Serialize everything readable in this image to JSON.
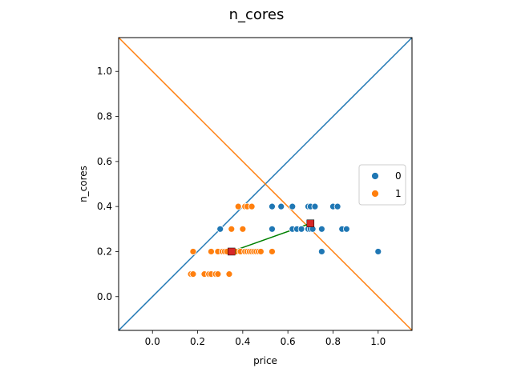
{
  "chart_data": {
    "type": "scatter",
    "title": "n_cores",
    "xlabel": "price",
    "ylabel": "n_cores",
    "xlim": [
      -0.15,
      1.15
    ],
    "ylim": [
      -0.15,
      1.15
    ],
    "xticks": [
      "0.0",
      "0.2",
      "0.4",
      "0.6",
      "0.8",
      "1.0"
    ],
    "yticks": [
      "0.0",
      "0.2",
      "0.4",
      "0.6",
      "0.8",
      "1.0"
    ],
    "grid": false,
    "legend_position": "center-right",
    "series": [
      {
        "name": "0",
        "color": "#1f77b4",
        "points": [
          [
            0.53,
            0.4
          ],
          [
            0.57,
            0.4
          ],
          [
            0.62,
            0.4
          ],
          [
            0.69,
            0.4
          ],
          [
            0.7,
            0.4
          ],
          [
            0.72,
            0.4
          ],
          [
            0.8,
            0.4
          ],
          [
            0.82,
            0.4
          ],
          [
            0.3,
            0.3
          ],
          [
            0.53,
            0.3
          ],
          [
            0.62,
            0.3
          ],
          [
            0.64,
            0.3
          ],
          [
            0.66,
            0.3
          ],
          [
            0.69,
            0.3
          ],
          [
            0.7,
            0.3
          ],
          [
            0.71,
            0.3
          ],
          [
            0.75,
            0.3
          ],
          [
            0.84,
            0.3
          ],
          [
            0.86,
            0.3
          ],
          [
            0.42,
            0.2
          ],
          [
            0.45,
            0.2
          ],
          [
            0.48,
            0.2
          ],
          [
            0.75,
            0.2
          ],
          [
            1.0,
            0.2
          ]
        ]
      },
      {
        "name": "1",
        "color": "#ff7f0e",
        "points": [
          [
            0.38,
            0.4
          ],
          [
            0.41,
            0.4
          ],
          [
            0.42,
            0.4
          ],
          [
            0.44,
            0.4
          ],
          [
            0.35,
            0.3
          ],
          [
            0.4,
            0.3
          ],
          [
            0.18,
            0.2
          ],
          [
            0.26,
            0.2
          ],
          [
            0.29,
            0.2
          ],
          [
            0.31,
            0.2
          ],
          [
            0.32,
            0.2
          ],
          [
            0.33,
            0.2
          ],
          [
            0.35,
            0.2
          ],
          [
            0.37,
            0.2
          ],
          [
            0.39,
            0.2
          ],
          [
            0.41,
            0.2
          ],
          [
            0.42,
            0.2
          ],
          [
            0.43,
            0.2
          ],
          [
            0.44,
            0.2
          ],
          [
            0.45,
            0.2
          ],
          [
            0.46,
            0.2
          ],
          [
            0.47,
            0.2
          ],
          [
            0.48,
            0.2
          ],
          [
            0.53,
            0.2
          ],
          [
            0.17,
            0.1
          ],
          [
            0.18,
            0.1
          ],
          [
            0.23,
            0.1
          ],
          [
            0.25,
            0.1
          ],
          [
            0.26,
            0.1
          ],
          [
            0.28,
            0.1
          ],
          [
            0.29,
            0.1
          ],
          [
            0.34,
            0.1
          ]
        ]
      }
    ],
    "lines": [
      {
        "color": "#1f77b4",
        "from": [
          -0.15,
          -0.15
        ],
        "to": [
          1.15,
          1.15
        ]
      },
      {
        "color": "#ff7f0e",
        "from": [
          -0.15,
          1.15
        ],
        "to": [
          1.15,
          -0.15
        ]
      },
      {
        "color": "#008000",
        "from": [
          0.35,
          0.2
        ],
        "to": [
          0.7,
          0.325
        ]
      }
    ],
    "markers": [
      {
        "color": "#d62728",
        "shape": "square",
        "at": [
          0.35,
          0.2
        ]
      },
      {
        "color": "#d62728",
        "shape": "square",
        "at": [
          0.7,
          0.325
        ]
      }
    ]
  }
}
